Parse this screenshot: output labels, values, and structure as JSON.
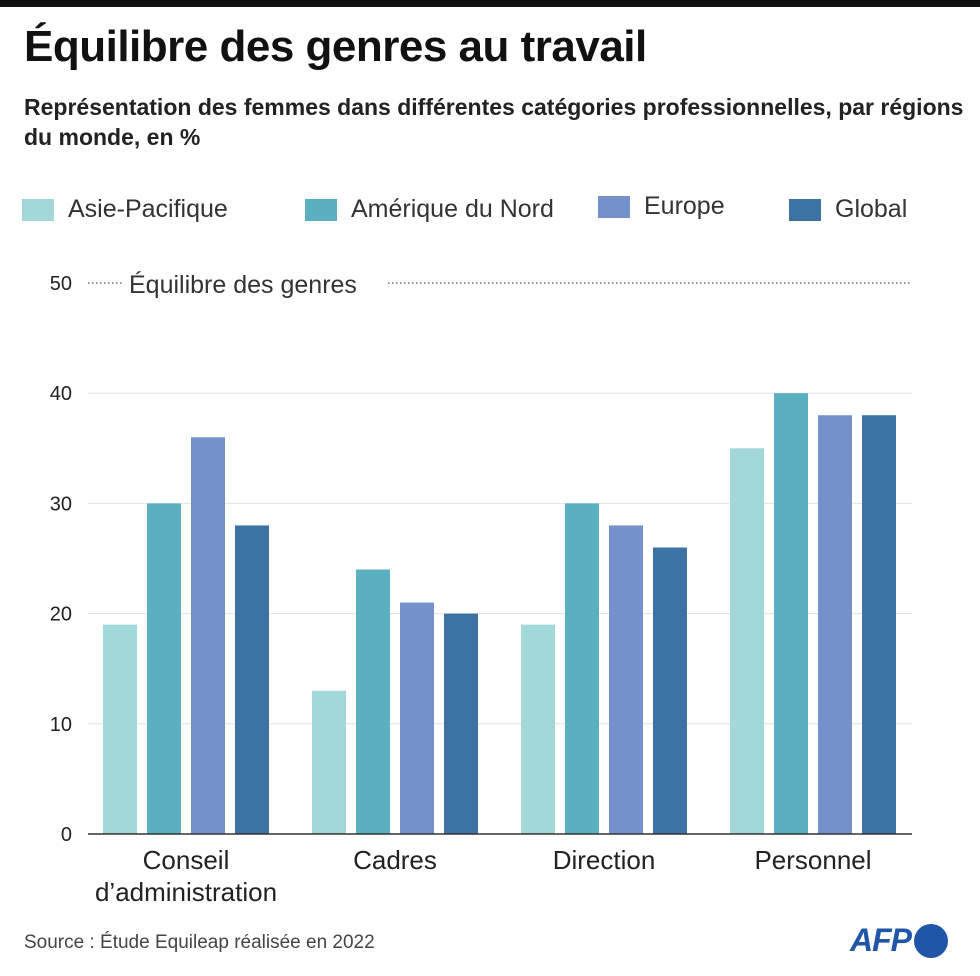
{
  "chart_data": {
    "type": "bar",
    "title": "Équilibre des genres au travail",
    "subtitle": "Représentation des femmes dans différentes catégories professionnelles, par régions du monde, en %",
    "categories": [
      "Conseil d’administration",
      "Cadres",
      "Direction",
      "Personnel"
    ],
    "series": [
      {
        "name": "Asie-Pacifique",
        "color": "#a3d8d9",
        "values": [
          19,
          13,
          19,
          35
        ]
      },
      {
        "name": "Amérique du Nord",
        "color": "#5aafc1",
        "values": [
          30,
          24,
          30,
          40
        ]
      },
      {
        "name": "Europe",
        "color": "#7591cb",
        "values": [
          36,
          21,
          28,
          38
        ]
      },
      {
        "name": "Global",
        "color": "#3d72a4",
        "values": [
          28,
          20,
          26,
          38
        ]
      }
    ],
    "ylim": [
      0,
      50
    ],
    "yticks": [
      "0",
      "10",
      "20",
      "30",
      "40",
      "50"
    ],
    "reference_line": {
      "value": 50,
      "label": "Équilibre des genres"
    },
    "grid": true,
    "legend": "top",
    "xlabel": "",
    "ylabel": ""
  },
  "source": "Source : Étude Equileap réalisée en 2022",
  "logo": "AFP",
  "colors": {
    "logo": "#1f56a8"
  }
}
